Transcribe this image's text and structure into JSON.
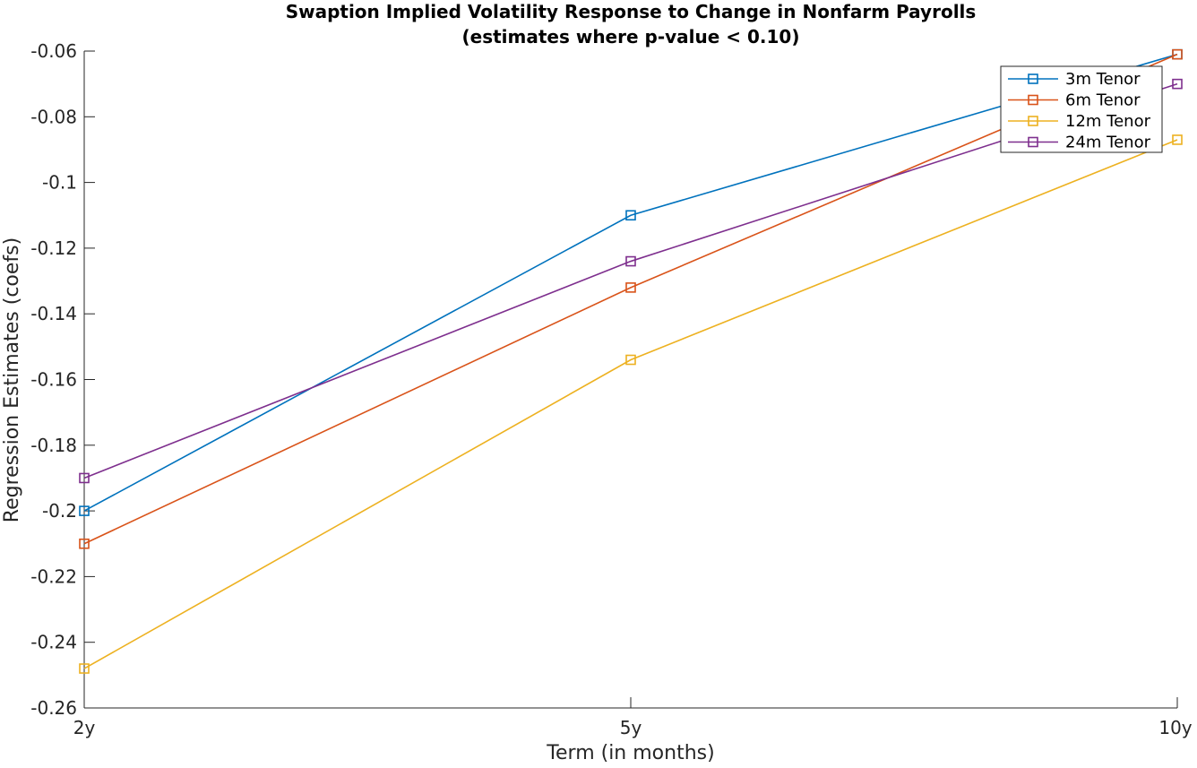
{
  "chart_data": {
    "type": "line",
    "title": "Swaption Implied Volatility Response to Change in Nonfarm Payrolls",
    "subtitle": "(estimates where p-value < 0.10)",
    "xlabel": "Term (in months)",
    "ylabel": "Regression Estimates (coefs)",
    "categories": [
      "2y",
      "5y",
      "10y"
    ],
    "ylim": [
      -0.26,
      -0.06
    ],
    "yticks": [
      -0.06,
      -0.08,
      -0.1,
      -0.12,
      -0.14,
      -0.16,
      -0.18,
      -0.2,
      -0.22,
      -0.24,
      -0.26
    ],
    "ytick_labels": [
      "-0.06",
      "-0.08",
      "-0.1",
      "-0.12",
      "-0.14",
      "-0.16",
      "-0.18",
      "-0.2",
      "-0.22",
      "-0.24",
      "-0.26"
    ],
    "grid": false,
    "legend_position": "top-right",
    "marker": "square",
    "series": [
      {
        "name": "3m Tenor",
        "color": "#0072BD",
        "values": [
          -0.2,
          -0.11,
          -0.061
        ]
      },
      {
        "name": "6m Tenor",
        "color": "#D95319",
        "values": [
          -0.21,
          -0.132,
          -0.061
        ]
      },
      {
        "name": "12m Tenor",
        "color": "#EDB120",
        "values": [
          -0.248,
          -0.154,
          -0.087
        ]
      },
      {
        "name": "24m Tenor",
        "color": "#7E2F8E",
        "values": [
          -0.19,
          -0.124,
          -0.07
        ]
      }
    ]
  }
}
